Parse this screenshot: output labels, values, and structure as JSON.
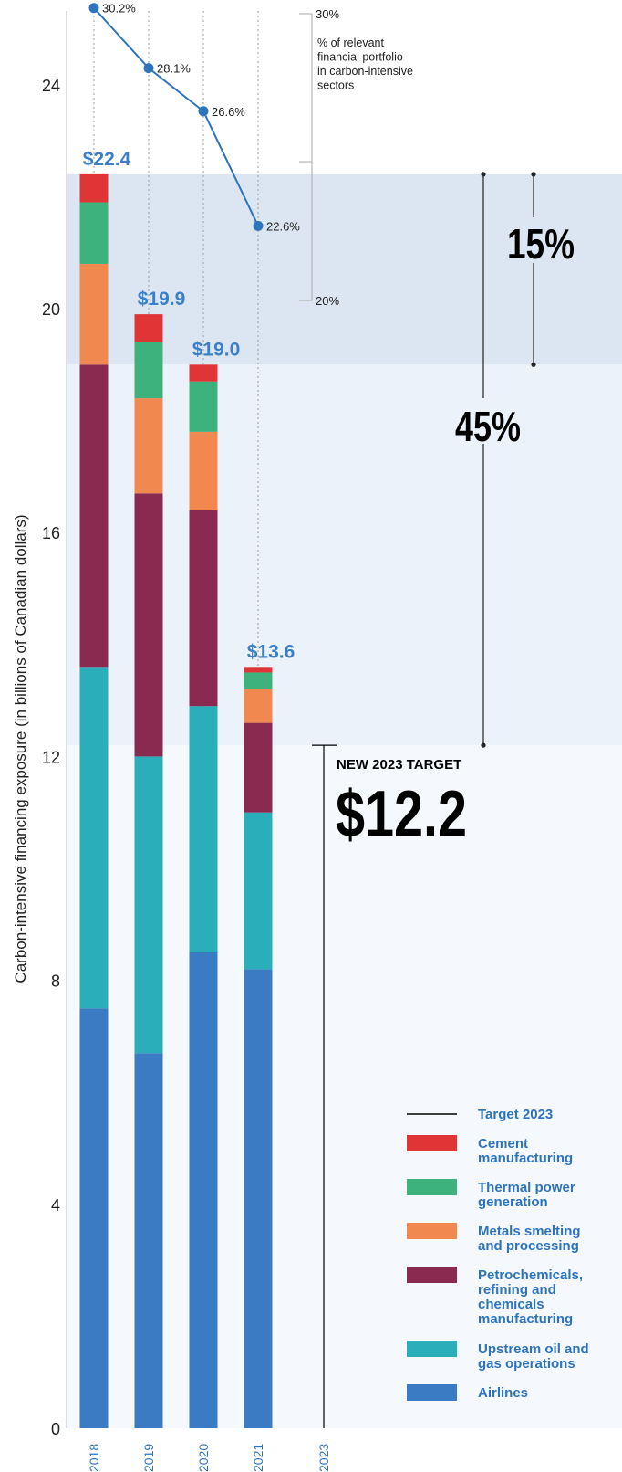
{
  "chart_data": {
    "type": "bar",
    "stacked": true,
    "categories": [
      "2018",
      "2019",
      "2020",
      "2021",
      "2023"
    ],
    "ylabel": "Carbon-intensive financing exposure (in billions of Canadian dollars)",
    "ylim": [
      0,
      25
    ],
    "yticks": [
      "0",
      "4",
      "8",
      "12",
      "16",
      "20",
      "24"
    ],
    "series": [
      {
        "name": "Airlines",
        "color": "#3a7bc4",
        "values": [
          7.5,
          6.7,
          8.5,
          8.2,
          null
        ]
      },
      {
        "name": "Upstream oil and gas operations",
        "color": "#2aaeb9",
        "values": [
          6.1,
          5.3,
          4.4,
          2.8,
          null
        ]
      },
      {
        "name": "Petrochemicals, refining and chemicals manufacturing",
        "color": "#8b2a50",
        "values": [
          5.4,
          4.7,
          3.5,
          1.6,
          null
        ]
      },
      {
        "name": "Metals smelting and processing",
        "color": "#f0884f",
        "values": [
          1.8,
          1.7,
          1.4,
          0.6,
          null
        ]
      },
      {
        "name": "Thermal power generation",
        "color": "#3db27c",
        "values": [
          1.1,
          1.0,
          0.9,
          0.3,
          null
        ]
      },
      {
        "name": "Cement manufacturing",
        "color": "#e03536",
        "values": [
          0.5,
          0.5,
          0.3,
          0.1,
          null
        ]
      }
    ],
    "totals": [
      "$22.4",
      "$19.9",
      "$19.0",
      "$13.6"
    ],
    "percent_series": {
      "values": [
        30.2,
        28.1,
        26.6,
        22.6
      ],
      "labels": [
        "30.2%",
        "28.1%",
        "26.6%",
        "22.6%"
      ],
      "scale_top_label": "30%",
      "scale_bottom_label": "20%",
      "description": [
        "% of relevant",
        "financial portfolio",
        "in carbon-intensive",
        "sectors"
      ]
    },
    "target": {
      "value": 12.2,
      "title": "NEW 2023 TARGET",
      "label": "$12.2"
    },
    "bands": [
      {
        "label": "15%",
        "from": 19.0,
        "to": 22.4,
        "color": "#dbe6f2"
      },
      {
        "label": "45%",
        "from": 12.2,
        "to": 19.0,
        "color": "#ebf2fa"
      }
    ],
    "legend": [
      "Target 2023",
      "Cement manufacturing",
      "Thermal power generation",
      "Metals smelting and processing",
      "Petrochemicals, refining and chemicals manufacturing",
      "Upstream oil and gas operations",
      "Airlines"
    ]
  }
}
